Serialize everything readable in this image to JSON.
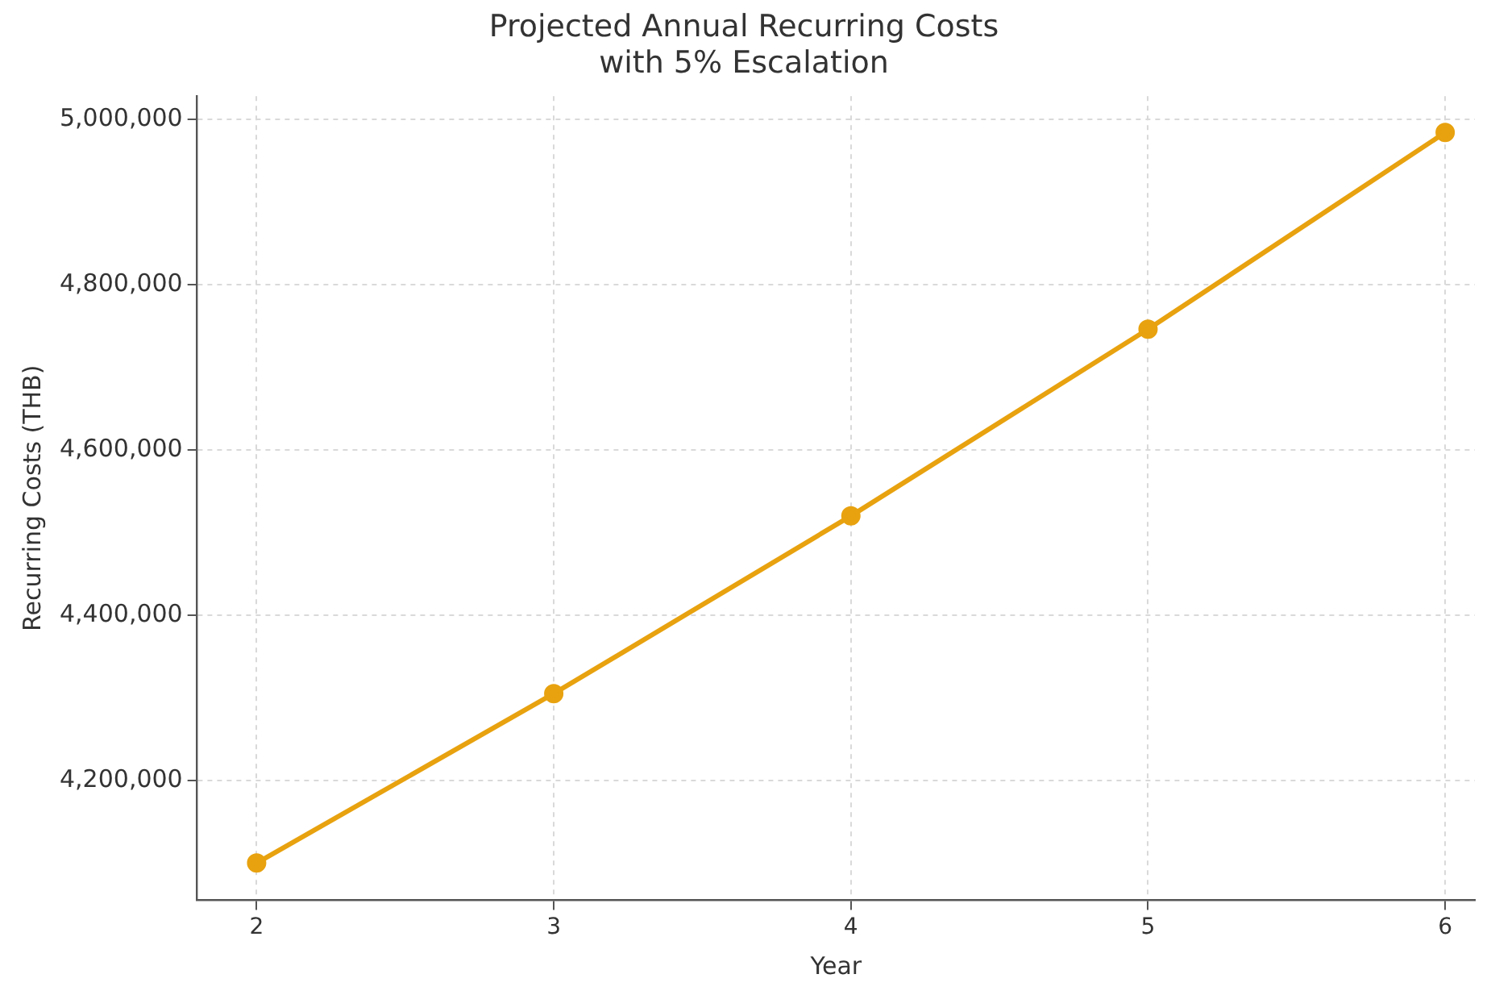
{
  "chart_data": {
    "type": "line",
    "title": "Projected Annual Recurring Costs\nwith 5% Escalation",
    "xlabel": "Year",
    "ylabel": "Recurring Costs (THB)",
    "x": [
      2,
      3,
      4,
      5,
      6
    ],
    "series": [
      {
        "color": "#e8a20f",
        "values": [
          4100000,
          4305000,
          4520000,
          4746000,
          4984000
        ]
      }
    ],
    "xlim": [
      1.8,
      6.1
    ],
    "xticks": [
      2,
      3,
      4,
      5,
      6
    ],
    "ylim": [
      4055000,
      5028000
    ],
    "yticks": [
      {
        "value": 4200000,
        "label": "4,200,000"
      },
      {
        "value": 4400000,
        "label": "4,400,000"
      },
      {
        "value": 4600000,
        "label": "4,600,000"
      },
      {
        "value": 4800000,
        "label": "4,800,000"
      },
      {
        "value": 5000000,
        "label": "5,000,000"
      }
    ],
    "grid": true,
    "marker": "circle",
    "line_style": "solid"
  }
}
